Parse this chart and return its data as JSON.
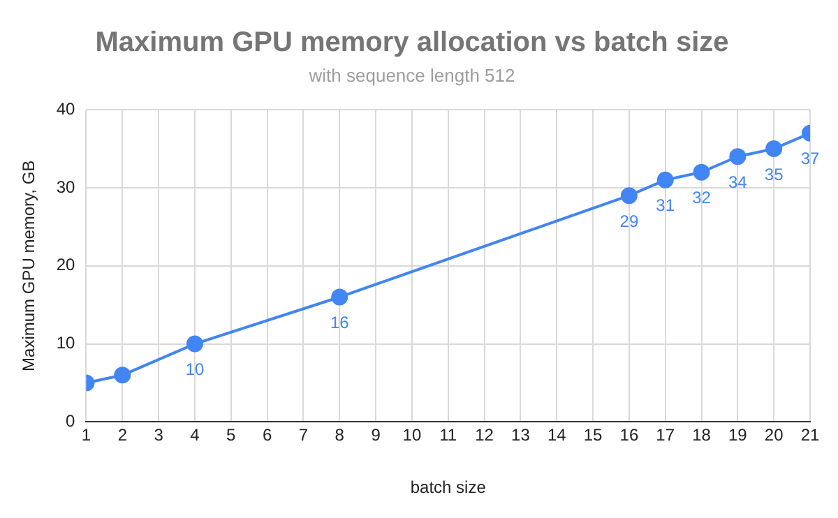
{
  "chart_data": {
    "type": "line",
    "title": "Maximum GPU memory allocation vs batch size",
    "subtitle": "with sequence length 512",
    "xlabel": "batch size",
    "ylabel": "Maximum GPU memory, GB",
    "x": [
      1,
      2,
      4,
      8,
      16,
      17,
      18,
      19,
      20,
      21
    ],
    "series": [
      {
        "color": "#4285f4",
        "values": [
          5,
          6,
          10,
          16,
          29,
          31,
          32,
          34,
          35,
          37
        ],
        "value_labels": [
          null,
          null,
          "10",
          "16",
          "29",
          "31",
          "32",
          "34",
          "35",
          "37"
        ]
      }
    ],
    "xlim": [
      1,
      21
    ],
    "xticks": [
      1,
      2,
      3,
      4,
      5,
      6,
      7,
      8,
      9,
      10,
      11,
      12,
      13,
      14,
      15,
      16,
      17,
      18,
      19,
      20,
      21
    ],
    "ylim": [
      0,
      40
    ],
    "yticks": [
      0,
      10,
      20,
      30,
      40
    ],
    "grid": true,
    "legend": false,
    "marker": "circle",
    "line_style": "solid"
  }
}
